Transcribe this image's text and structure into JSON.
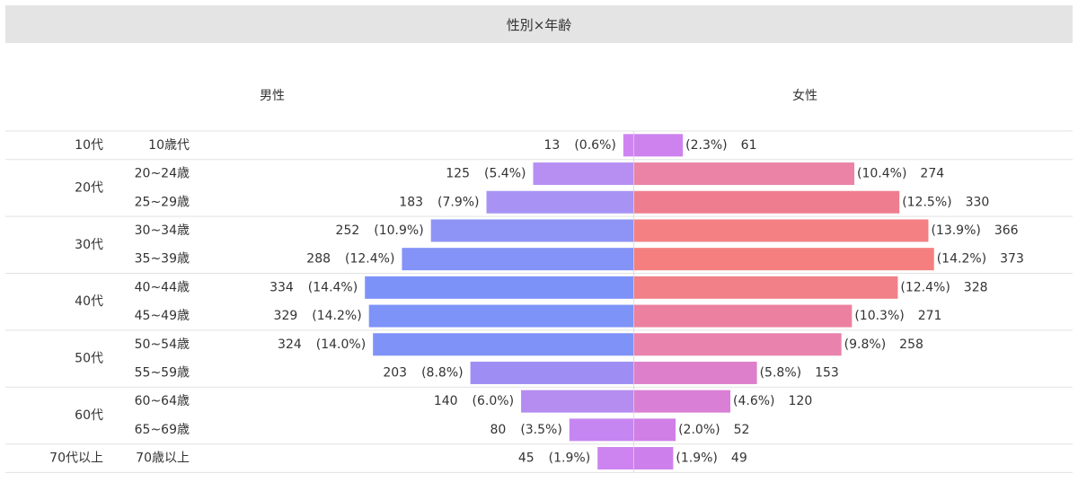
{
  "page_title": "性別×年齢",
  "colors": {
    "header_bg": "#e4e4e4",
    "divider": "#e2e2e2",
    "text": "#333333",
    "male_bars": [
      "#cf84f2",
      "#b78ff2",
      "#a893f5",
      "#8e94f6",
      "#8393f7",
      "#7d92f8",
      "#7e93f8",
      "#7e92f8",
      "#9e8ef3",
      "#b58cf0",
      "#c686f1",
      "#cd84f0"
    ],
    "female_bars": [
      "#cd82ee",
      "#ea83a6",
      "#ee7e8f",
      "#f48084",
      "#f57f7f",
      "#f18088",
      "#ec80a0",
      "#e982ac",
      "#de7fcb",
      "#da7fd6",
      "#d07fe6",
      "#cd80eb"
    ]
  },
  "chart_data": {
    "type": "bar",
    "orientation": "horizontal-butterfly",
    "title": "性別×年齢",
    "series": [
      {
        "name": "男性",
        "values": [
          13,
          125,
          183,
          252,
          288,
          334,
          329,
          324,
          203,
          140,
          80,
          45
        ],
        "labels_pct": [
          "(0.6%)",
          "(5.4%)",
          "(7.9%)",
          "(10.9%)",
          "(12.4%)",
          "(14.4%)",
          "(14.2%)",
          "(14.0%)",
          "(8.8%)",
          "(6.0%)",
          "(3.5%)",
          "(1.9%)"
        ]
      },
      {
        "name": "女性",
        "values": [
          61,
          274,
          330,
          366,
          373,
          328,
          271,
          258,
          153,
          120,
          52,
          49
        ],
        "labels_pct": [
          "(2.3%)",
          "(10.4%)",
          "(12.5%)",
          "(13.9%)",
          "(14.2%)",
          "(12.4%)",
          "(10.3%)",
          "(9.8%)",
          "(5.8%)",
          "(4.6%)",
          "(2.0%)",
          "(1.9%)"
        ]
      }
    ],
    "categories": [
      "10歳代",
      "20~24歳",
      "25~29歳",
      "30~34歳",
      "35~39歳",
      "40~44歳",
      "45~49歳",
      "50~54歳",
      "55~59歳",
      "60~64歳",
      "65~69歳",
      "70歳以上"
    ],
    "groups": [
      {
        "label": "10代",
        "count": 1
      },
      {
        "label": "20代",
        "count": 2
      },
      {
        "label": "30代",
        "count": 2
      },
      {
        "label": "40代",
        "count": 2
      },
      {
        "label": "50代",
        "count": 2
      },
      {
        "label": "60代",
        "count": 2
      },
      {
        "label": "70代以上",
        "count": 1
      }
    ],
    "xlim": [
      0,
      380
    ]
  }
}
